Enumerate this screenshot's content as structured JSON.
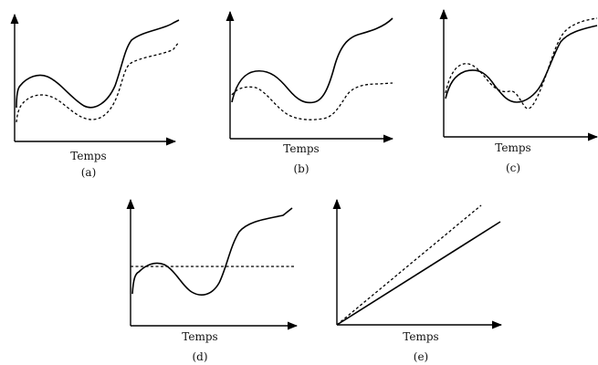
{
  "panels": [
    {
      "xlabel": "Temps",
      "caption": "(a)"
    },
    {
      "xlabel": "Temps",
      "caption": "(b)"
    },
    {
      "xlabel": "Temps",
      "caption": "(c)"
    },
    {
      "xlabel": "Temps",
      "caption": "(d)"
    },
    {
      "xlabel": "Temps",
      "caption": "(e)"
    }
  ]
}
